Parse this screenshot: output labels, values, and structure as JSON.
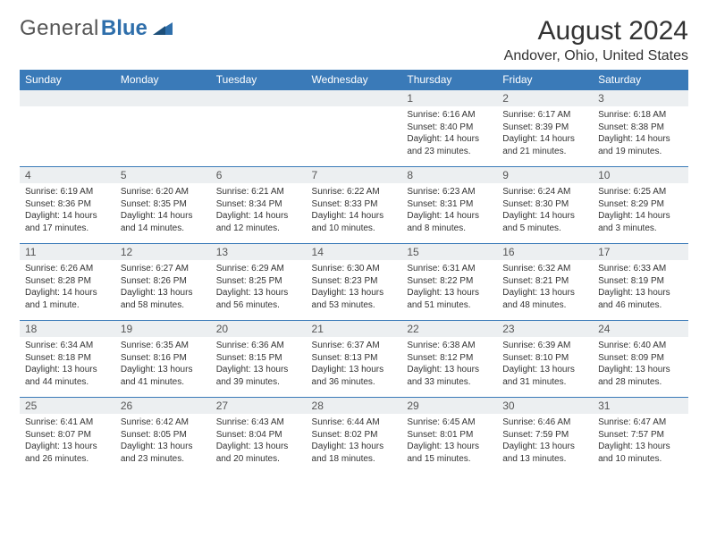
{
  "brand": {
    "part1": "General",
    "part2": "Blue"
  },
  "title": "August 2024",
  "location": "Andover, Ohio, United States",
  "colors": {
    "header_bg": "#3a7ab8",
    "header_text": "#ffffff",
    "daynum_bg": "#eceff1",
    "row_border": "#3a7ab8",
    "brand_gray": "#555555",
    "brand_blue": "#2f6fab",
    "text": "#333333",
    "page_bg": "#ffffff"
  },
  "weekdays": [
    "Sunday",
    "Monday",
    "Tuesday",
    "Wednesday",
    "Thursday",
    "Friday",
    "Saturday"
  ],
  "weeks": [
    [
      {
        "n": "",
        "sr": "",
        "ss": "",
        "dl": ""
      },
      {
        "n": "",
        "sr": "",
        "ss": "",
        "dl": ""
      },
      {
        "n": "",
        "sr": "",
        "ss": "",
        "dl": ""
      },
      {
        "n": "",
        "sr": "",
        "ss": "",
        "dl": ""
      },
      {
        "n": "1",
        "sr": "Sunrise: 6:16 AM",
        "ss": "Sunset: 8:40 PM",
        "dl": "Daylight: 14 hours and 23 minutes."
      },
      {
        "n": "2",
        "sr": "Sunrise: 6:17 AM",
        "ss": "Sunset: 8:39 PM",
        "dl": "Daylight: 14 hours and 21 minutes."
      },
      {
        "n": "3",
        "sr": "Sunrise: 6:18 AM",
        "ss": "Sunset: 8:38 PM",
        "dl": "Daylight: 14 hours and 19 minutes."
      }
    ],
    [
      {
        "n": "4",
        "sr": "Sunrise: 6:19 AM",
        "ss": "Sunset: 8:36 PM",
        "dl": "Daylight: 14 hours and 17 minutes."
      },
      {
        "n": "5",
        "sr": "Sunrise: 6:20 AM",
        "ss": "Sunset: 8:35 PM",
        "dl": "Daylight: 14 hours and 14 minutes."
      },
      {
        "n": "6",
        "sr": "Sunrise: 6:21 AM",
        "ss": "Sunset: 8:34 PM",
        "dl": "Daylight: 14 hours and 12 minutes."
      },
      {
        "n": "7",
        "sr": "Sunrise: 6:22 AM",
        "ss": "Sunset: 8:33 PM",
        "dl": "Daylight: 14 hours and 10 minutes."
      },
      {
        "n": "8",
        "sr": "Sunrise: 6:23 AM",
        "ss": "Sunset: 8:31 PM",
        "dl": "Daylight: 14 hours and 8 minutes."
      },
      {
        "n": "9",
        "sr": "Sunrise: 6:24 AM",
        "ss": "Sunset: 8:30 PM",
        "dl": "Daylight: 14 hours and 5 minutes."
      },
      {
        "n": "10",
        "sr": "Sunrise: 6:25 AM",
        "ss": "Sunset: 8:29 PM",
        "dl": "Daylight: 14 hours and 3 minutes."
      }
    ],
    [
      {
        "n": "11",
        "sr": "Sunrise: 6:26 AM",
        "ss": "Sunset: 8:28 PM",
        "dl": "Daylight: 14 hours and 1 minute."
      },
      {
        "n": "12",
        "sr": "Sunrise: 6:27 AM",
        "ss": "Sunset: 8:26 PM",
        "dl": "Daylight: 13 hours and 58 minutes."
      },
      {
        "n": "13",
        "sr": "Sunrise: 6:29 AM",
        "ss": "Sunset: 8:25 PM",
        "dl": "Daylight: 13 hours and 56 minutes."
      },
      {
        "n": "14",
        "sr": "Sunrise: 6:30 AM",
        "ss": "Sunset: 8:23 PM",
        "dl": "Daylight: 13 hours and 53 minutes."
      },
      {
        "n": "15",
        "sr": "Sunrise: 6:31 AM",
        "ss": "Sunset: 8:22 PM",
        "dl": "Daylight: 13 hours and 51 minutes."
      },
      {
        "n": "16",
        "sr": "Sunrise: 6:32 AM",
        "ss": "Sunset: 8:21 PM",
        "dl": "Daylight: 13 hours and 48 minutes."
      },
      {
        "n": "17",
        "sr": "Sunrise: 6:33 AM",
        "ss": "Sunset: 8:19 PM",
        "dl": "Daylight: 13 hours and 46 minutes."
      }
    ],
    [
      {
        "n": "18",
        "sr": "Sunrise: 6:34 AM",
        "ss": "Sunset: 8:18 PM",
        "dl": "Daylight: 13 hours and 44 minutes."
      },
      {
        "n": "19",
        "sr": "Sunrise: 6:35 AM",
        "ss": "Sunset: 8:16 PM",
        "dl": "Daylight: 13 hours and 41 minutes."
      },
      {
        "n": "20",
        "sr": "Sunrise: 6:36 AM",
        "ss": "Sunset: 8:15 PM",
        "dl": "Daylight: 13 hours and 39 minutes."
      },
      {
        "n": "21",
        "sr": "Sunrise: 6:37 AM",
        "ss": "Sunset: 8:13 PM",
        "dl": "Daylight: 13 hours and 36 minutes."
      },
      {
        "n": "22",
        "sr": "Sunrise: 6:38 AM",
        "ss": "Sunset: 8:12 PM",
        "dl": "Daylight: 13 hours and 33 minutes."
      },
      {
        "n": "23",
        "sr": "Sunrise: 6:39 AM",
        "ss": "Sunset: 8:10 PM",
        "dl": "Daylight: 13 hours and 31 minutes."
      },
      {
        "n": "24",
        "sr": "Sunrise: 6:40 AM",
        "ss": "Sunset: 8:09 PM",
        "dl": "Daylight: 13 hours and 28 minutes."
      }
    ],
    [
      {
        "n": "25",
        "sr": "Sunrise: 6:41 AM",
        "ss": "Sunset: 8:07 PM",
        "dl": "Daylight: 13 hours and 26 minutes."
      },
      {
        "n": "26",
        "sr": "Sunrise: 6:42 AM",
        "ss": "Sunset: 8:05 PM",
        "dl": "Daylight: 13 hours and 23 minutes."
      },
      {
        "n": "27",
        "sr": "Sunrise: 6:43 AM",
        "ss": "Sunset: 8:04 PM",
        "dl": "Daylight: 13 hours and 20 minutes."
      },
      {
        "n": "28",
        "sr": "Sunrise: 6:44 AM",
        "ss": "Sunset: 8:02 PM",
        "dl": "Daylight: 13 hours and 18 minutes."
      },
      {
        "n": "29",
        "sr": "Sunrise: 6:45 AM",
        "ss": "Sunset: 8:01 PM",
        "dl": "Daylight: 13 hours and 15 minutes."
      },
      {
        "n": "30",
        "sr": "Sunrise: 6:46 AM",
        "ss": "Sunset: 7:59 PM",
        "dl": "Daylight: 13 hours and 13 minutes."
      },
      {
        "n": "31",
        "sr": "Sunrise: 6:47 AM",
        "ss": "Sunset: 7:57 PM",
        "dl": "Daylight: 13 hours and 10 minutes."
      }
    ]
  ]
}
